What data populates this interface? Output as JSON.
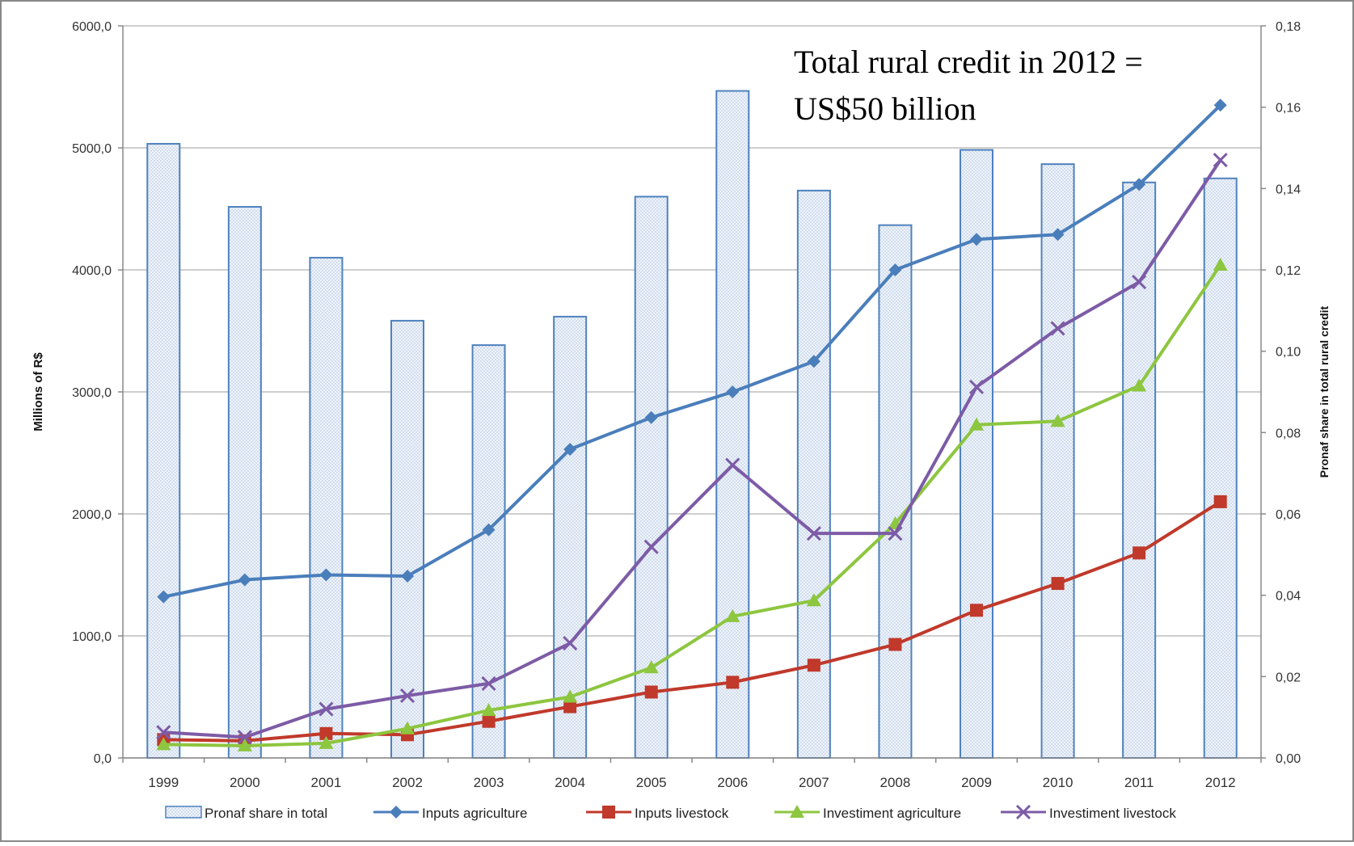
{
  "chart_data": {
    "type": "bar",
    "categories": [
      "1999",
      "2000",
      "2001",
      "2002",
      "2003",
      "2004",
      "2005",
      "2006",
      "2007",
      "2008",
      "2009",
      "2010",
      "2011",
      "2012"
    ],
    "left_axis": {
      "label": "Millions of R$",
      "ylim": [
        0,
        6000
      ],
      "ticks": [
        "0,0",
        "1000,0",
        "2000,0",
        "3000,0",
        "4000,0",
        "5000,0",
        "6000,0"
      ],
      "tick_values": [
        0,
        1000,
        2000,
        3000,
        4000,
        5000,
        6000
      ]
    },
    "right_axis": {
      "label": "Pronaf share in total rural credit",
      "ylim": [
        0,
        0.18
      ],
      "ticks": [
        "0,00",
        "0,02",
        "0,04",
        "0,06",
        "0,08",
        "0,10",
        "0,12",
        "0,14",
        "0,16",
        "0,18"
      ],
      "tick_values": [
        0,
        0.02,
        0.04,
        0.06,
        0.08,
        0.1,
        0.12,
        0.14,
        0.16,
        0.18
      ]
    },
    "bar_series": {
      "name": "Pronaf share in total",
      "axis": "right",
      "values": [
        0.151,
        0.1355,
        0.123,
        0.1075,
        0.1015,
        0.1085,
        0.138,
        0.164,
        0.1395,
        0.131,
        0.1495,
        0.146,
        0.1415,
        0.1425
      ],
      "color": "#4f81bd"
    },
    "series": [
      {
        "name": "Inputs agriculture",
        "type": "line",
        "marker": "diamond",
        "color": "#4a7ebb",
        "axis": "left",
        "values": [
          1320,
          1460,
          1500,
          1490,
          1870,
          2530,
          2790,
          3000,
          3250,
          4000,
          4250,
          4290,
          4700,
          5350
        ]
      },
      {
        "name": "Inputs livestock",
        "type": "line",
        "marker": "square",
        "color": "#c0392b",
        "axis": "left",
        "values": [
          150,
          140,
          200,
          190,
          300,
          420,
          540,
          620,
          760,
          930,
          1210,
          1430,
          1680,
          2100
        ]
      },
      {
        "name": "Investiment agriculture",
        "type": "line",
        "marker": "triangle",
        "color": "#8dc63f",
        "axis": "left",
        "values": [
          110,
          100,
          120,
          240,
          390,
          500,
          740,
          1160,
          1290,
          1920,
          2730,
          2760,
          3050,
          4040
        ]
      },
      {
        "name": "Investiment livestock",
        "type": "line",
        "marker": "x",
        "color": "#7d5ba6",
        "axis": "left",
        "values": [
          210,
          170,
          400,
          510,
          610,
          940,
          1730,
          2400,
          1840,
          1840,
          3040,
          3520,
          3900,
          4900
        ]
      }
    ],
    "annotation": [
      "Total rural credit in 2012 =",
      "US$50 billion"
    ],
    "grid": true,
    "legend_position": "bottom"
  }
}
